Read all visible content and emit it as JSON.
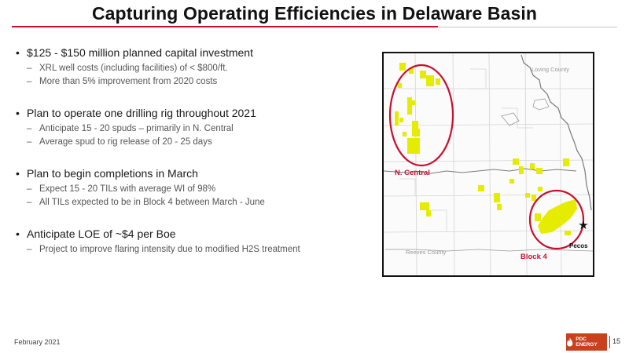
{
  "slide": {
    "title": "Capturing Operating Efficiencies in Delaware Basin",
    "bullets": [
      {
        "text": "$125 - $150 million planned capital investment",
        "subs": [
          "XRL well costs (including facilities) of < $800/ft.",
          "More than 5% improvement from 2020 costs"
        ]
      },
      {
        "text": "Plan to operate one drilling rig throughout 2021",
        "subs": [
          "Anticipate 15 - 20 spuds – primarily in N. Central",
          "Average spud to rig release of 20 - 25 days"
        ]
      },
      {
        "text": "Plan to begin completions in March",
        "subs": [
          "Expect 15 - 20 TILs with average WI of 98%",
          "All TILs expected to be in Block 4 between March - June"
        ]
      },
      {
        "text": "Anticipate LOE of ~$4 per Boe",
        "subs": [
          "Project to improve flaring intensity due to modified H2S treatment"
        ]
      }
    ],
    "bullet_symbol": "•",
    "sub_symbol": "–"
  },
  "map": {
    "labels": {
      "loving_county": "Loving County",
      "reeves_county": "Reeves County",
      "n_central": "N. Central",
      "block_4": "Block 4",
      "pecos": "Pecos"
    },
    "colors": {
      "acreage": "#e6ec00",
      "circle": "#c8102e",
      "boundary": "#7a7a7a",
      "grid": "#d4d4d4"
    }
  },
  "footer": {
    "date": "February 2021",
    "logo_text": "PDC ENERGY",
    "page": "15"
  }
}
